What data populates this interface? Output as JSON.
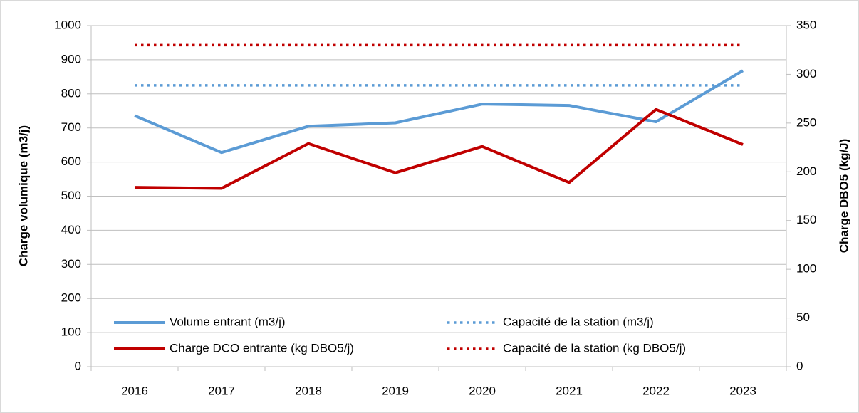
{
  "chart_data": {
    "type": "line",
    "categories": [
      "2016",
      "2017",
      "2018",
      "2019",
      "2020",
      "2021",
      "2022",
      "2023"
    ],
    "y_label": "Charge volumique (m3/j)",
    "y2_label": "Charge DBO5 (kg/J)",
    "ylim": [
      0,
      1000
    ],
    "yticks": [
      0,
      100,
      200,
      300,
      400,
      500,
      600,
      700,
      800,
      900,
      1000
    ],
    "y2lim": [
      0,
      350
    ],
    "y2ticks": [
      0,
      50,
      100,
      150,
      200,
      250,
      300,
      350
    ],
    "grid": true,
    "series": [
      {
        "name": "Volume entrant (m3/j)",
        "color": "#5b9bd5",
        "style": "solid",
        "values": [
          736,
          628,
          705,
          715,
          770,
          766,
          718,
          868
        ]
      },
      {
        "name": "Capacité de la station (m3/j)",
        "color": "#5b9bd5",
        "style": "dotted",
        "values": [
          825,
          825,
          825,
          825,
          825,
          825,
          825,
          825
        ]
      },
      {
        "name": "Charge DCO entrante (kg DBO5/j)",
        "color": "#c00000",
        "style": "solid",
        "axis": "y2",
        "values": [
          184,
          183,
          229,
          199,
          226,
          189,
          264,
          228
        ]
      },
      {
        "name": "Capacité de la station (kg DBO5/j)",
        "color": "#c00000",
        "style": "dotted",
        "axis": "y2",
        "values": [
          330,
          330,
          330,
          330,
          330,
          330,
          330,
          330
        ]
      }
    ]
  }
}
